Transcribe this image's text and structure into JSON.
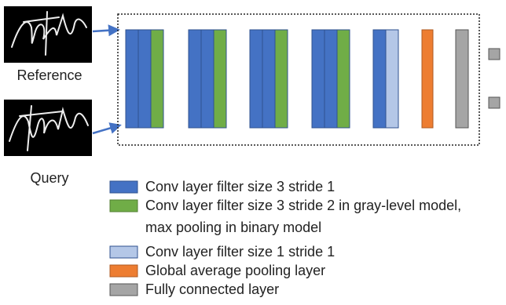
{
  "inputs": [
    {
      "label": "Reference"
    },
    {
      "label": "Query"
    }
  ],
  "legend": {
    "items": [
      {
        "label": "Conv layer filter size 3 stride 1"
      },
      {
        "lines": [
          "Conv layer filter size 3 stride 2 in gray-level model,",
          "max pooling in binary model"
        ]
      },
      {
        "label": "Conv layer filter size 1 stride 1"
      },
      {
        "label": "Global average pooling layer"
      },
      {
        "label": "Fully connected layer"
      }
    ]
  }
}
